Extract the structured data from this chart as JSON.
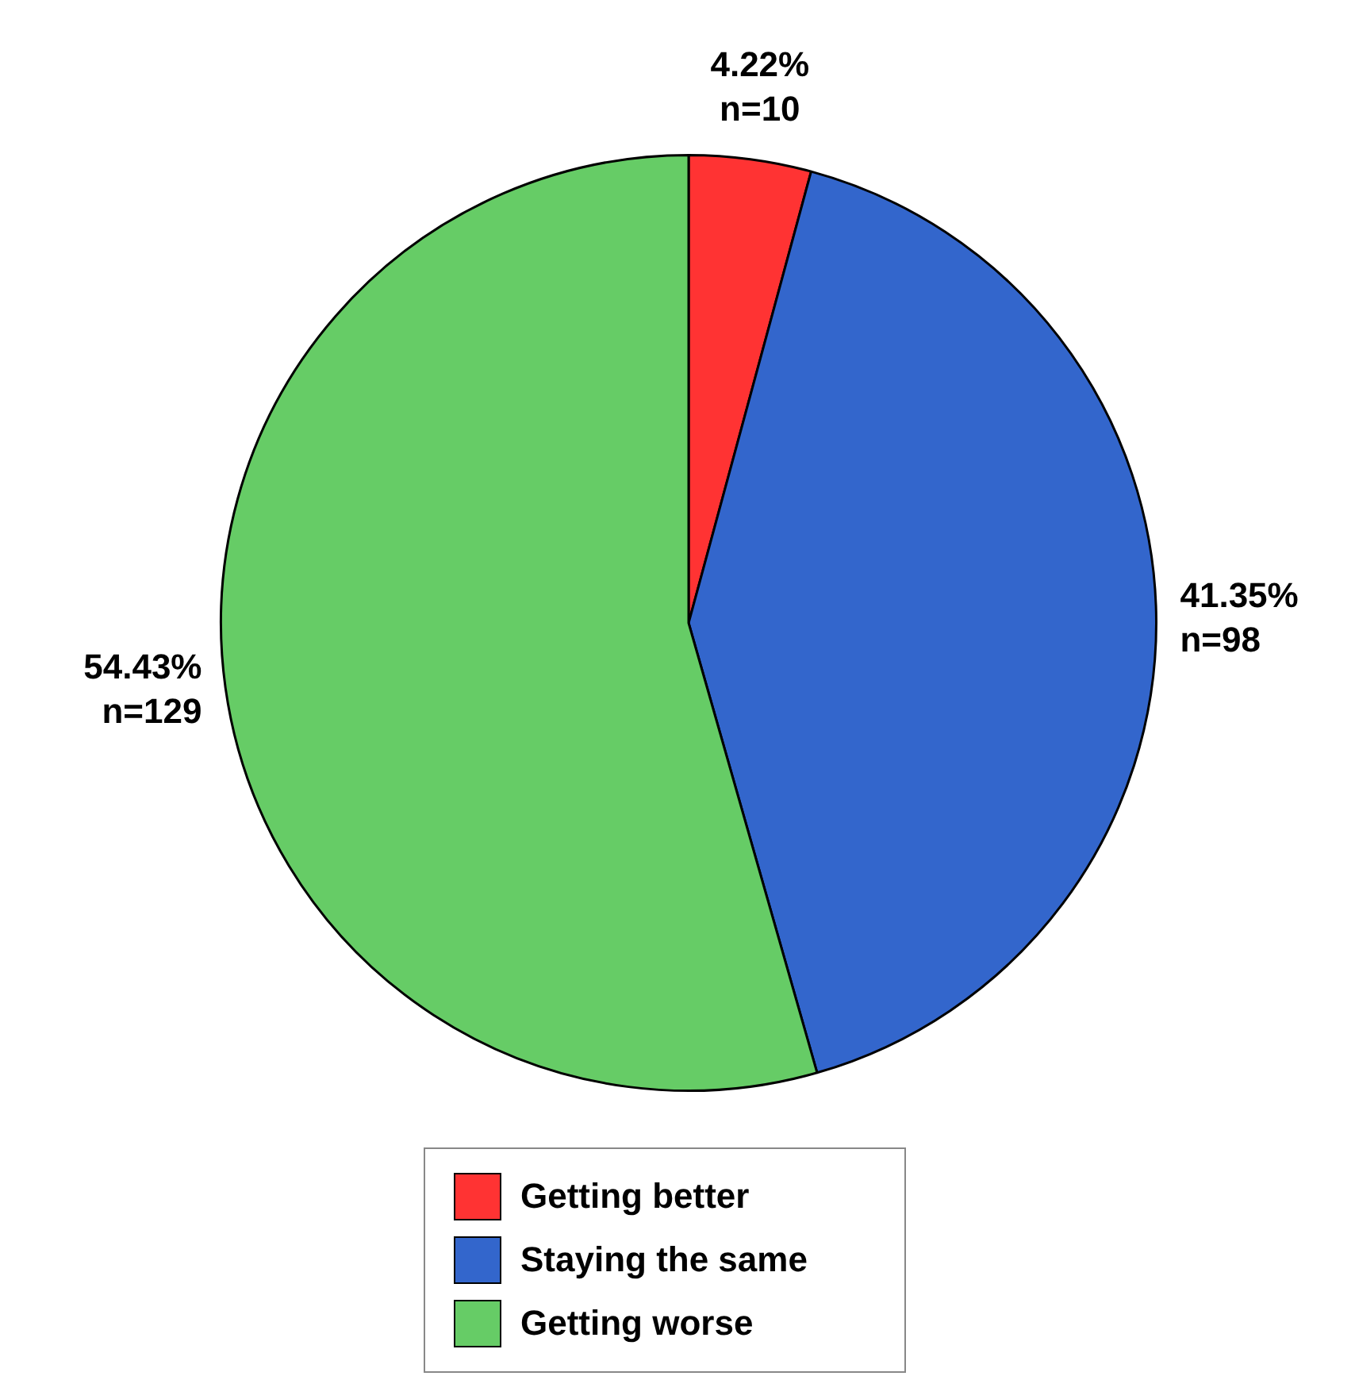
{
  "chart_data": {
    "type": "pie",
    "categories": [
      "Getting better",
      "Staying the same",
      "Getting worse"
    ],
    "values": [
      10,
      98,
      129
    ],
    "colors": [
      "#ff3333",
      "#3366cc",
      "#66cc66"
    ],
    "value_labels": [
      "4.22%\nn=10",
      "41.35%\nn=98",
      "54.43%\nn=129"
    ],
    "legend": "bottom"
  }
}
